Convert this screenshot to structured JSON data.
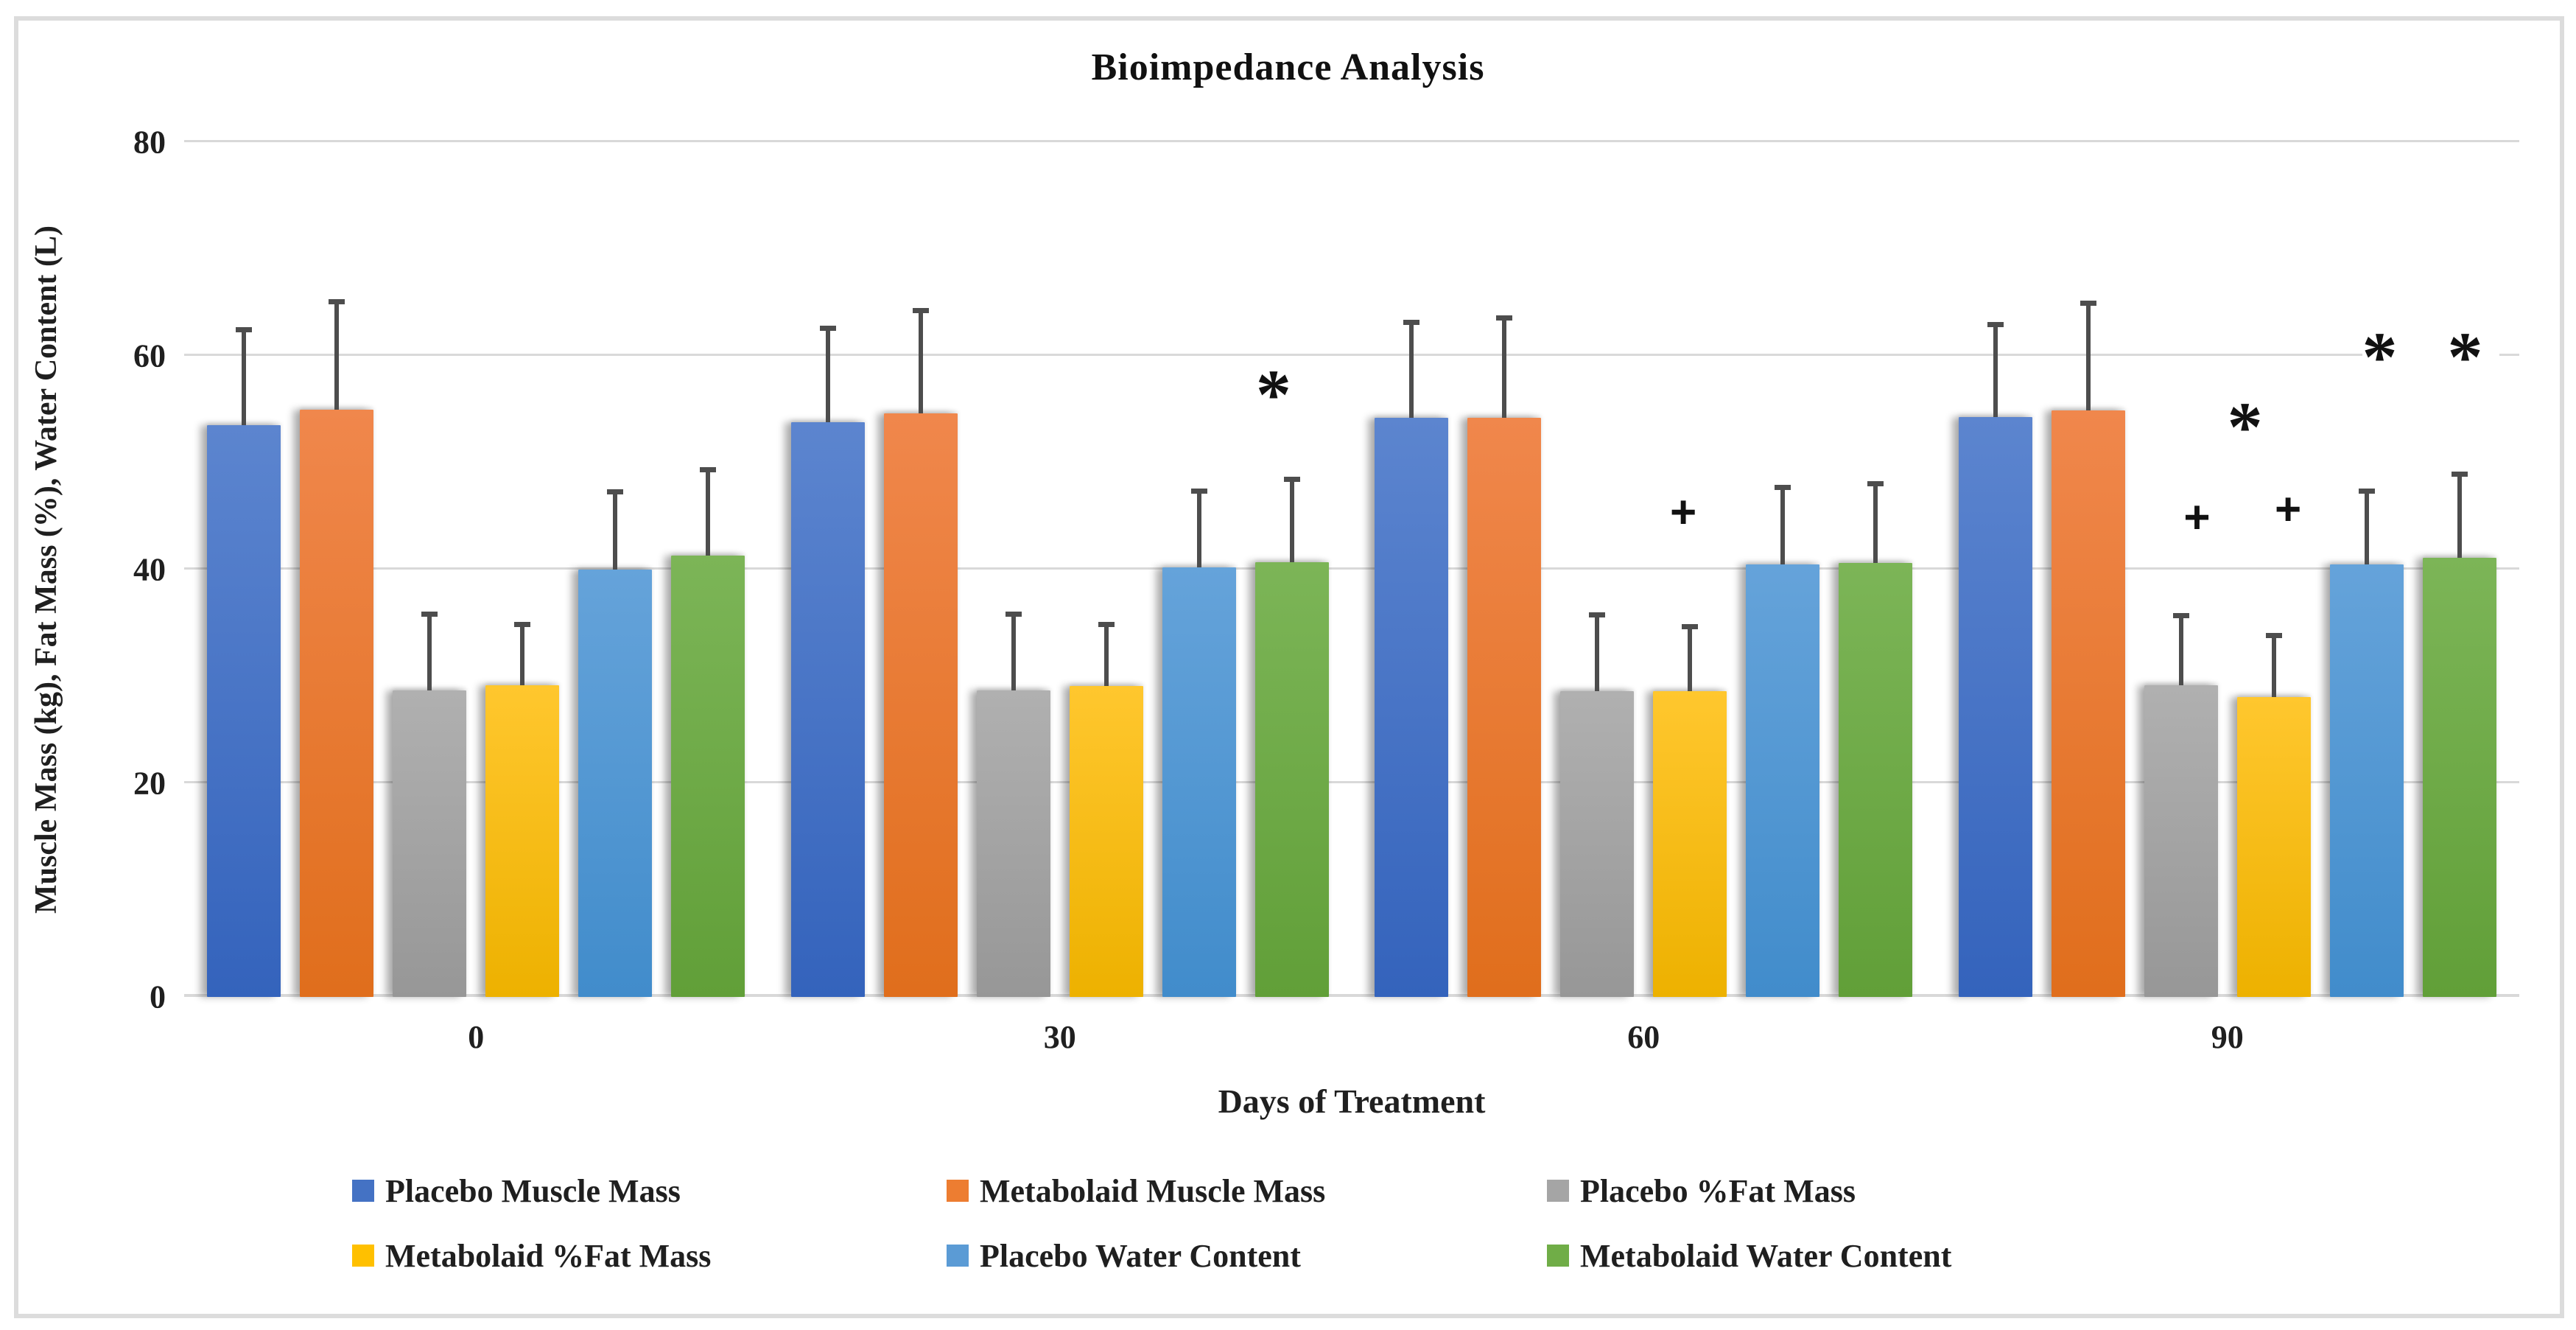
{
  "chart_data": {
    "type": "bar",
    "title": "Bioimpedance Analysis",
    "xlabel": "Days of Treatment",
    "ylabel": "Muscle Mass (kg), Fat Mass (%), Water Content (L)",
    "categories": [
      "0",
      "30",
      "60",
      "90"
    ],
    "ylim": [
      0,
      80
    ],
    "yticks": [
      0,
      20,
      40,
      60,
      80
    ],
    "grid": "horizontal-only",
    "legend_position": "bottom-two-rows",
    "error_bars": "upper-only",
    "series": [
      {
        "name": "Placebo Muscle Mass",
        "color": "#4472C4",
        "color_top": "#5C85CF",
        "color_bottom": "#3463BC",
        "values": [
          53.5,
          53.8,
          54.2,
          54.3
        ],
        "errors": [
          9.2,
          9.0,
          9.2,
          8.9
        ]
      },
      {
        "name": "Metabolaid Muscle Mass",
        "color": "#ED7D31",
        "color_top": "#F0874C",
        "color_bottom": "#E06E1C",
        "values": [
          55.0,
          54.6,
          54.2,
          54.9
        ],
        "errors": [
          10.3,
          9.9,
          9.6,
          10.3
        ]
      },
      {
        "name": "Placebo %Fat Mass",
        "color": "#A5A5A5",
        "color_top": "#B0B0B0",
        "color_bottom": "#979797",
        "values": [
          28.7,
          28.7,
          28.6,
          29.2
        ],
        "errors": [
          7.4,
          7.4,
          7.4,
          6.7
        ]
      },
      {
        "name": "Metabolaid %Fat Mass",
        "color": "#FFC000",
        "color_top": "#FFC72E",
        "color_bottom": "#EDB100",
        "values": [
          29.2,
          29.1,
          28.6,
          28.1
        ],
        "errors": [
          5.9,
          6.0,
          6.3,
          6.0
        ]
      },
      {
        "name": "Placebo Water Content",
        "color": "#5B9BD5",
        "color_top": "#65A3DA",
        "color_bottom": "#418CCB",
        "values": [
          40.0,
          40.2,
          40.5,
          40.5
        ],
        "errors": [
          7.5,
          7.4,
          7.4,
          7.1
        ]
      },
      {
        "name": "Metabolaid Water Content",
        "color": "#70AD47",
        "color_top": "#7CB557",
        "color_bottom": "#619F38",
        "values": [
          41.3,
          40.7,
          40.6,
          41.1
        ],
        "errors": [
          8.3,
          8.0,
          7.7,
          8.1
        ]
      }
    ],
    "annotations": [
      {
        "symbol": "*",
        "category": "30",
        "above_series": "Metabolaid Water Content",
        "value": 58.0,
        "x_frac": 0.47
      },
      {
        "symbol": "+",
        "category": "60",
        "above_series": "Metabolaid %Fat Mass",
        "value": 45.3,
        "x_frac": 0.642
      },
      {
        "symbol": "+",
        "category": "90",
        "above_series": "Placebo %Fat Mass",
        "value": 44.8,
        "x_frac": 0.862
      },
      {
        "symbol": "*",
        "category": "90",
        "above_series": "Metabolaid %Fat Mass",
        "value": 55.0,
        "x_frac": 0.886
      },
      {
        "symbol": "+",
        "category": "90",
        "above_series": "Metabolaid %Fat Mass",
        "value": 45.6,
        "x_frac": 0.901
      },
      {
        "symbol": "* *",
        "category": "90",
        "above_series": "Metabolaid Water Content",
        "value": 61.5,
        "x_frac": 0.962
      }
    ],
    "gridline_color": "#D9D9D9",
    "error_bar_color": "#4D4D4D"
  }
}
